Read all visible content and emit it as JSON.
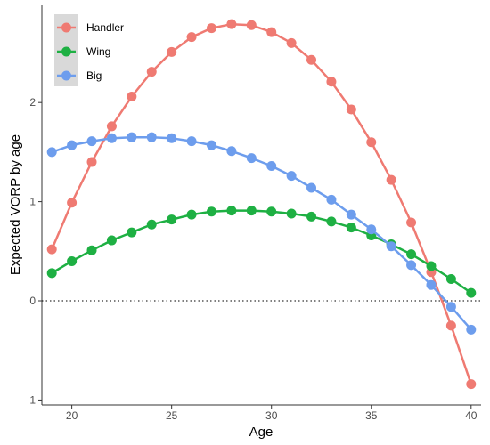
{
  "chart_data": {
    "type": "line",
    "xlabel": "Age",
    "ylabel": "Expected VORP by age",
    "xlim": [
      18.5,
      40.5
    ],
    "ylim": [
      -1.05,
      2.98
    ],
    "x_ticks": [
      20,
      25,
      30,
      35,
      40
    ],
    "y_ticks": [
      -1,
      0,
      1,
      2
    ],
    "x_tick_labels": [
      "20",
      "25",
      "30",
      "35",
      "40"
    ],
    "y_tick_labels": [
      "-1",
      "0",
      "1",
      "2"
    ],
    "reference_line": {
      "y": 0,
      "style": "dotted"
    },
    "grid": false,
    "legend_position": "top-left",
    "x": [
      19,
      20,
      21,
      22,
      23,
      24,
      25,
      26,
      27,
      28,
      29,
      30,
      31,
      32,
      33,
      34,
      35,
      36,
      37,
      38,
      39,
      40
    ],
    "series": [
      {
        "name": "Handler",
        "color": "#ef7a72",
        "values": [
          0.52,
          0.99,
          1.4,
          1.76,
          2.06,
          2.31,
          2.51,
          2.66,
          2.75,
          2.79,
          2.78,
          2.71,
          2.6,
          2.43,
          2.21,
          1.93,
          1.6,
          1.22,
          0.79,
          0.29,
          -0.25,
          -0.84
        ]
      },
      {
        "name": "Wing",
        "color": "#1eb043",
        "values": [
          0.28,
          0.4,
          0.51,
          0.61,
          0.69,
          0.77,
          0.82,
          0.87,
          0.9,
          0.91,
          0.91,
          0.9,
          0.88,
          0.85,
          0.8,
          0.74,
          0.66,
          0.57,
          0.47,
          0.35,
          0.22,
          0.08
        ]
      },
      {
        "name": "Big",
        "color": "#6d9ded",
        "values": [
          1.5,
          1.57,
          1.61,
          1.64,
          1.65,
          1.65,
          1.64,
          1.61,
          1.57,
          1.51,
          1.44,
          1.36,
          1.26,
          1.14,
          1.02,
          0.87,
          0.72,
          0.55,
          0.36,
          0.16,
          -0.06,
          -0.29
        ]
      }
    ]
  }
}
